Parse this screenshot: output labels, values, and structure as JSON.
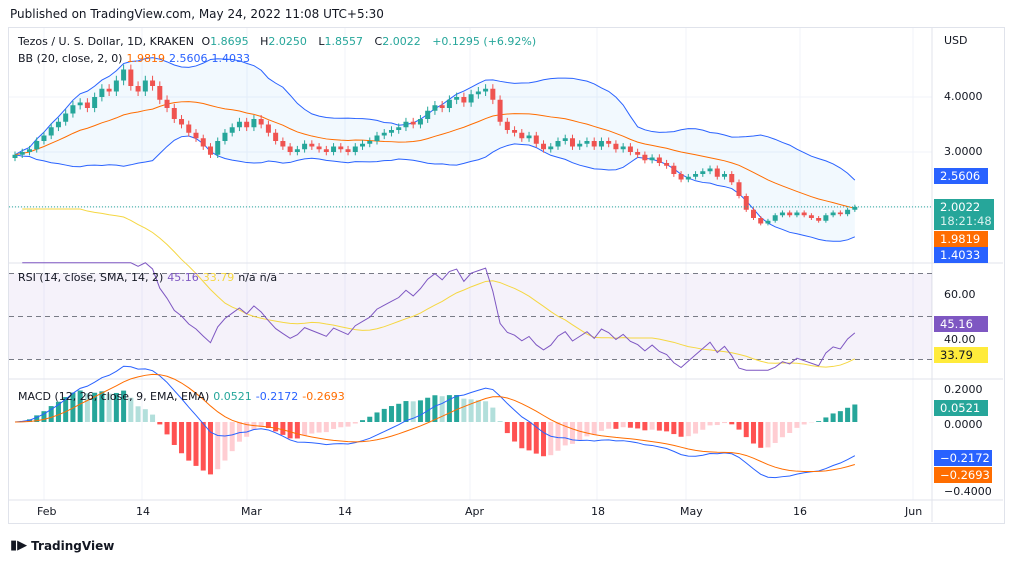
{
  "published": "Published on TradingView.com, May 24, 2022 11:08 UTC+5:30",
  "main": {
    "symbol": "Tezos / U. S. Dollar, 1D, KRAKEN",
    "o_label": "O",
    "o": "1.8695",
    "h_label": "H",
    "h": "2.0250",
    "l_label": "L",
    "l": "1.8557",
    "c_label": "C",
    "c": "2.0022",
    "change": "+0.1295 (+6.92%)",
    "bb": {
      "label": "BB (20, close, 2, 0)",
      "basis": "1.9819",
      "upper": "2.5606",
      "lower": "1.4033"
    },
    "currency": "USD",
    "ticks": [
      "4.0000",
      "3.0000"
    ],
    "last_price": "2.0022",
    "countdown": "18:21:48"
  },
  "rsi": {
    "label": "RSI (14, close, SMA, 14, 2)",
    "value": "45.16",
    "sma": "33.79",
    "na1": "n/a",
    "na2": "n/a",
    "ticks": [
      "60.00",
      "40.00"
    ]
  },
  "macd": {
    "label": "MACD (12, 26, close, 9, EMA, EMA)",
    "hist": "0.0521",
    "macd": "-0.2172",
    "signal": "-0.2693",
    "macd_disp": "−0.2172",
    "signal_disp": "−0.2693",
    "ticks": [
      "0.2000",
      "0.0000",
      "−0.4000"
    ]
  },
  "time_axis": [
    "Feb",
    "14",
    "Mar",
    "14",
    "Apr",
    "18",
    "May",
    "16",
    "Jun"
  ],
  "brand": "TradingView",
  "colors": {
    "up": "#26a69a",
    "down": "#ef5350",
    "bb_basis": "#ff6d00",
    "bb_band": "#2962ff",
    "rsi": "#7e57c2",
    "rsi_sma": "#f5d742",
    "macd": "#2962ff",
    "signal": "#ff6d00"
  },
  "chart_data": {
    "type": "candlestick",
    "x_start": "2022-01-28",
    "x_end": "2022-05-24",
    "interval": "1D",
    "ylim": [
      1.2,
      4.7
    ],
    "closes": [
      2.95,
      3.0,
      3.05,
      3.2,
      3.3,
      3.45,
      3.55,
      3.7,
      3.85,
      3.9,
      3.8,
      4.0,
      4.15,
      4.1,
      4.3,
      4.5,
      4.2,
      4.1,
      4.3,
      4.2,
      3.95,
      3.8,
      3.6,
      3.5,
      3.35,
      3.25,
      3.1,
      2.95,
      3.2,
      3.35,
      3.45,
      3.55,
      3.45,
      3.6,
      3.5,
      3.35,
      3.2,
      3.1,
      3.0,
      3.05,
      3.15,
      3.1,
      3.05,
      3.0,
      3.1,
      3.05,
      3.0,
      3.1,
      3.15,
      3.2,
      3.3,
      3.35,
      3.4,
      3.45,
      3.55,
      3.5,
      3.6,
      3.75,
      3.85,
      3.8,
      3.95,
      4.0,
      3.9,
      4.05,
      4.1,
      4.15,
      3.95,
      3.55,
      3.4,
      3.35,
      3.25,
      3.3,
      3.15,
      3.05,
      3.1,
      3.2,
      3.25,
      3.1,
      3.15,
      3.2,
      3.1,
      3.2,
      3.15,
      3.05,
      3.1,
      3.0,
      2.95,
      2.85,
      2.9,
      2.8,
      2.75,
      2.6,
      2.5,
      2.55,
      2.6,
      2.65,
      2.7,
      2.55,
      2.6,
      2.45,
      2.2,
      1.95,
      1.8,
      1.7,
      1.75,
      1.85,
      1.9,
      1.85,
      1.9,
      1.85,
      1.8,
      1.75,
      1.85,
      1.9,
      1.8695,
      1.95,
      2.0022
    ]
  }
}
